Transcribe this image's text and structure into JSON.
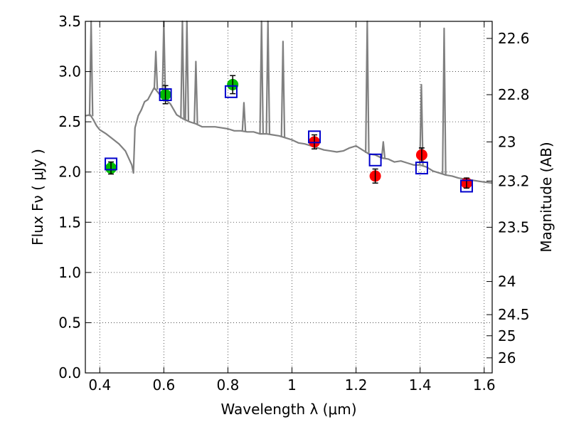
{
  "chart_data": {
    "type": "scatter",
    "title": "",
    "xlabel": "Wavelength  λ (μm)",
    "ylabel": "Flux  Fν  ( μJy )",
    "ylabel_right": "Magnitude (AB)",
    "xlim": [
      0.355,
      1.625
    ],
    "ylim": [
      0.0,
      3.5
    ],
    "grid": true,
    "x_ticks": [
      {
        "value": 0.4,
        "label": "0.4"
      },
      {
        "value": 0.6,
        "label": "0.6"
      },
      {
        "value": 0.8,
        "label": "0.8"
      },
      {
        "value": 1.0,
        "label": "1"
      },
      {
        "value": 1.2,
        "label": "1.2"
      },
      {
        "value": 1.4,
        "label": "1.4"
      },
      {
        "value": 1.6,
        "label": "1.6"
      }
    ],
    "y_ticks": [
      {
        "value": 0.0,
        "label": "0.0"
      },
      {
        "value": 0.5,
        "label": "0.5"
      },
      {
        "value": 1.0,
        "label": "1.0"
      },
      {
        "value": 1.5,
        "label": "1.5"
      },
      {
        "value": 2.0,
        "label": "2.0"
      },
      {
        "value": 2.5,
        "label": "2.5"
      },
      {
        "value": 3.0,
        "label": "3.0"
      },
      {
        "value": 3.5,
        "label": "3.5"
      }
    ],
    "right_ticks": [
      {
        "label": "22.6",
        "flux": 3.33
      },
      {
        "label": "22.8",
        "flux": 2.77
      },
      {
        "label": "23",
        "flux": 2.3
      },
      {
        "label": "23.2",
        "flux": 1.91
      },
      {
        "label": "23.5",
        "flux": 1.45
      },
      {
        "label": "24",
        "flux": 0.91
      },
      {
        "label": "24.5",
        "flux": 0.58
      },
      {
        "label": "25",
        "flux": 0.37
      },
      {
        "label": "26",
        "flux": 0.15
      }
    ],
    "series": [
      {
        "kind": "line",
        "color": "#808080",
        "x": [
          0.355,
          0.37,
          0.38,
          0.39,
          0.4,
          0.42,
          0.44,
          0.46,
          0.48,
          0.5,
          0.505,
          0.51,
          0.52,
          0.53,
          0.54,
          0.55,
          0.56,
          0.57,
          0.58,
          0.59,
          0.6,
          0.62,
          0.64,
          0.66,
          0.68,
          0.7,
          0.72,
          0.74,
          0.76,
          0.78,
          0.8,
          0.82,
          0.84,
          0.86,
          0.88,
          0.9,
          0.92,
          0.94,
          0.96,
          0.98,
          1.0,
          1.02,
          1.04,
          1.06,
          1.08,
          1.1,
          1.12,
          1.14,
          1.16,
          1.18,
          1.2,
          1.22,
          1.24,
          1.26,
          1.28,
          1.3,
          1.32,
          1.34,
          1.36,
          1.38,
          1.4,
          1.42,
          1.44,
          1.46,
          1.48,
          1.5,
          1.52,
          1.54,
          1.56,
          1.58,
          1.6,
          1.625
        ],
        "y": [
          2.56,
          2.57,
          2.52,
          2.46,
          2.42,
          2.38,
          2.33,
          2.28,
          2.21,
          2.07,
          1.99,
          2.44,
          2.56,
          2.62,
          2.7,
          2.72,
          2.78,
          2.84,
          2.8,
          2.76,
          2.73,
          2.68,
          2.57,
          2.53,
          2.5,
          2.48,
          2.45,
          2.45,
          2.45,
          2.44,
          2.43,
          2.41,
          2.41,
          2.4,
          2.4,
          2.38,
          2.38,
          2.37,
          2.36,
          2.34,
          2.32,
          2.29,
          2.28,
          2.26,
          2.24,
          2.22,
          2.21,
          2.2,
          2.21,
          2.24,
          2.26,
          2.22,
          2.18,
          2.17,
          2.14,
          2.13,
          2.1,
          2.11,
          2.09,
          2.07,
          2.07,
          2.05,
          2.01,
          1.99,
          1.97,
          1.96,
          1.94,
          1.93,
          1.92,
          1.91,
          1.9,
          1.89
        ]
      },
      {
        "kind": "emission_lines",
        "color": "#808080",
        "peaks": [
          {
            "x": 0.373,
            "y": 3.5
          },
          {
            "x": 0.575,
            "y": 3.2
          },
          {
            "x": 0.6,
            "y": 3.5
          },
          {
            "x": 0.658,
            "y": 3.5
          },
          {
            "x": 0.672,
            "y": 3.5
          },
          {
            "x": 0.7,
            "y": 3.1
          },
          {
            "x": 0.85,
            "y": 2.69
          },
          {
            "x": 0.905,
            "y": 3.5
          },
          {
            "x": 0.925,
            "y": 3.5
          },
          {
            "x": 0.972,
            "y": 3.3
          },
          {
            "x": 1.235,
            "y": 3.5
          },
          {
            "x": 1.285,
            "y": 2.3
          },
          {
            "x": 1.404,
            "y": 2.87
          },
          {
            "x": 1.475,
            "y": 3.43
          }
        ]
      },
      {
        "kind": "points",
        "marker": "circle",
        "color": "#00bb00",
        "x": [
          0.435,
          0.605,
          0.815
        ],
        "y": [
          2.04,
          2.77,
          2.87
        ],
        "err": [
          0.06,
          0.09,
          0.09
        ]
      },
      {
        "kind": "points",
        "marker": "circle",
        "color": "#ff0000",
        "x": [
          1.07,
          1.26,
          1.405,
          1.545
        ],
        "y": [
          2.3,
          1.96,
          2.17,
          1.89
        ],
        "err": [
          0.07,
          0.07,
          0.07,
          0.05
        ]
      },
      {
        "kind": "points",
        "marker": "open-square",
        "color": "#0000cc",
        "x": [
          0.435,
          0.605,
          0.81,
          1.07,
          1.26,
          1.405,
          1.545
        ],
        "y": [
          2.08,
          2.77,
          2.8,
          2.35,
          2.12,
          2.04,
          1.86
        ]
      }
    ]
  }
}
